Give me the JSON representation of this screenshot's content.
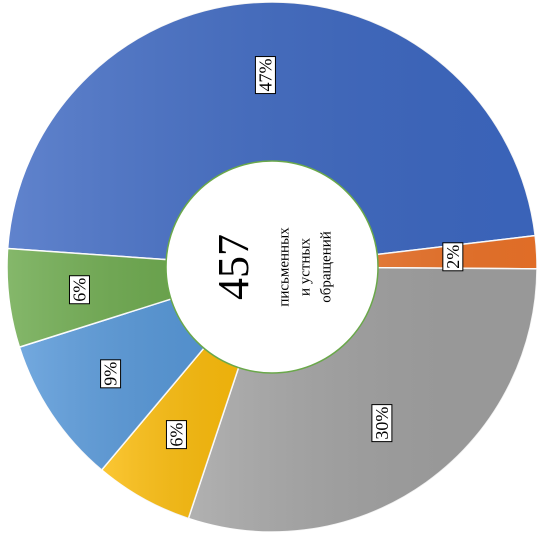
{
  "chart_data": {
    "type": "donut",
    "values": [
      47,
      2,
      30,
      6,
      9,
      6
    ],
    "value_labels": [
      "47%",
      "2%",
      "30%",
      "6%",
      "9%",
      "6%"
    ],
    "colors": [
      "#3d68c2",
      "#ec7329",
      "#a0a0a0",
      "#fbbb08",
      "#5496d8",
      "#6aa84a"
    ],
    "total": 457,
    "total_label": [
      "письменных",
      "и устных",
      "обращений"
    ]
  }
}
